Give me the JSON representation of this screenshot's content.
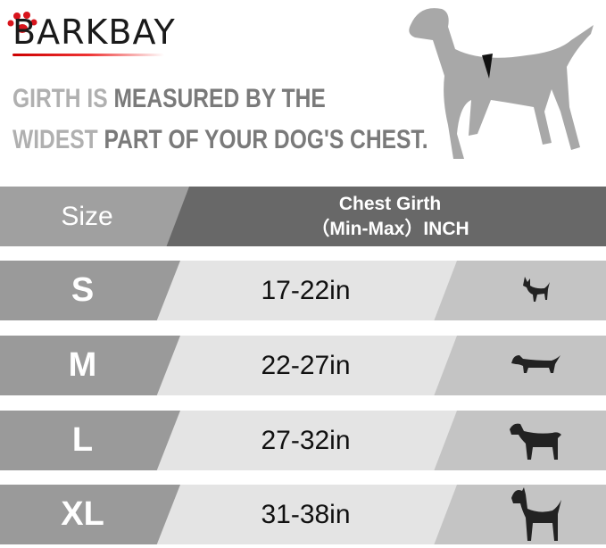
{
  "brand": {
    "logo_text": "BARKBAY",
    "accent": "#d8141c"
  },
  "headline": {
    "line1_light": "GIRTH IS ",
    "line1_dark": "MEASURED BY THE",
    "line2_light": "WIDEST ",
    "line2_dark": "PART OF YOUR DOG'S CHEST."
  },
  "table": {
    "header": {
      "size": "Size",
      "girth_line1": "Chest Girth",
      "girth_line2": "（Min-Max）INCH"
    },
    "rows": [
      {
        "size": "S",
        "girth": "17-22in",
        "icon": "chihuahua-icon"
      },
      {
        "size": "M",
        "girth": "22-27in",
        "icon": "dachshund-icon"
      },
      {
        "size": "L",
        "girth": "27-32in",
        "icon": "labrador-icon"
      },
      {
        "size": "XL",
        "girth": "31-38in",
        "icon": "great-dane-icon"
      }
    ]
  }
}
